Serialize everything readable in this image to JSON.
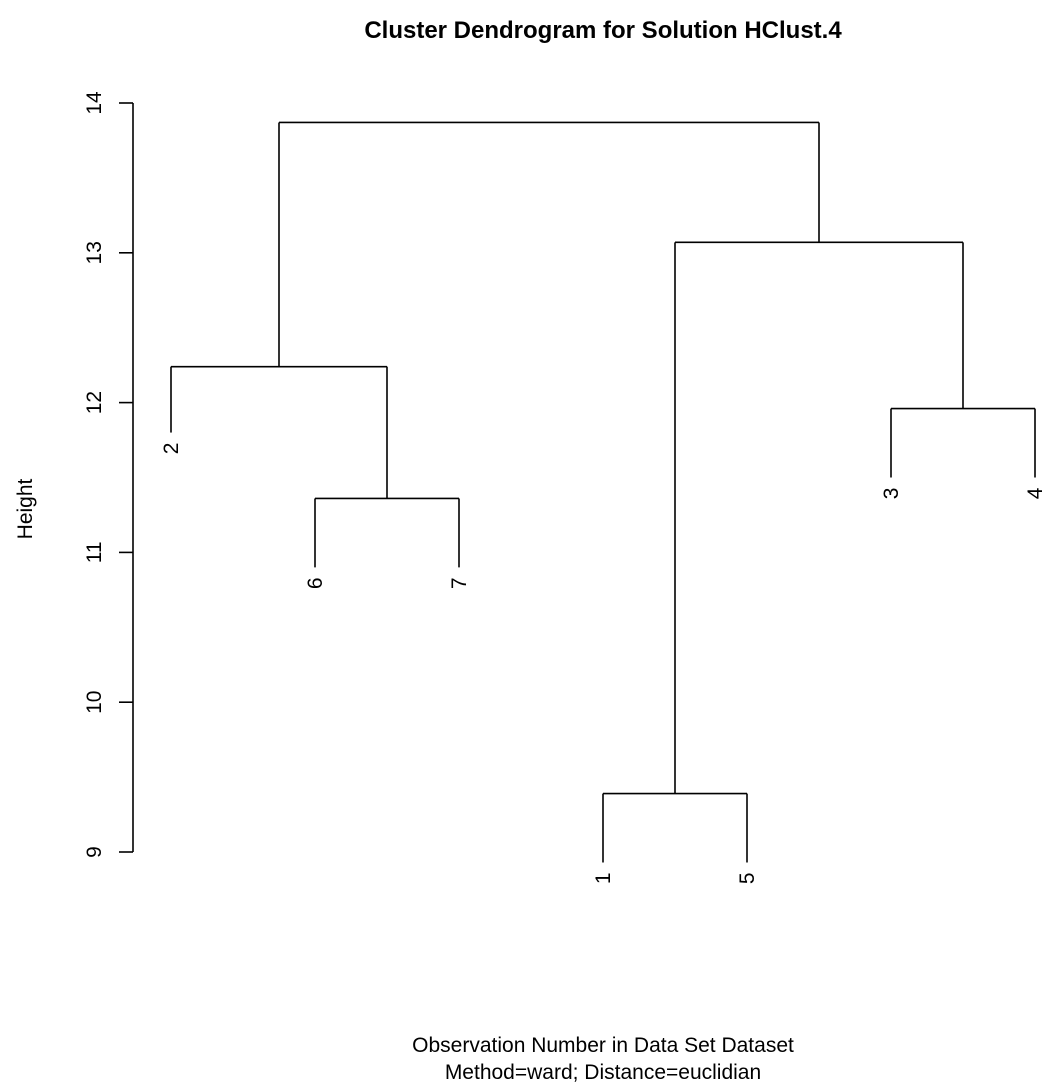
{
  "chart_data": {
    "type": "dendrogram",
    "title": "Cluster Dendrogram for Solution HClust.4",
    "ylabel": "Height",
    "xlabel": "Observation Number in Data Set Dataset",
    "subtitle": "Method=ward; Distance=euclidian",
    "ylim": [
      9,
      14
    ],
    "yticks": [
      9,
      10,
      11,
      12,
      13,
      14
    ],
    "leaf_order": [
      "2",
      "6",
      "7",
      "1",
      "5",
      "3",
      "4"
    ],
    "merges": [
      {
        "left": "6",
        "right": "7",
        "height": 11.36
      },
      {
        "left": "2",
        "right": "6+7",
        "height": 12.24
      },
      {
        "left": "1",
        "right": "5",
        "height": 9.39
      },
      {
        "left": "3",
        "right": "4",
        "height": 11.96
      },
      {
        "left": "1+5",
        "right": "3+4",
        "height": 13.07
      },
      {
        "left": "2+6+7",
        "right": "1+5+3+4",
        "height": 13.87
      }
    ],
    "leaf_heights": {
      "2": 11.8,
      "6": 10.9,
      "7": 10.9,
      "1": 8.93,
      "5": 8.93,
      "3": 11.5,
      "4": 11.5
    },
    "grid": false
  }
}
